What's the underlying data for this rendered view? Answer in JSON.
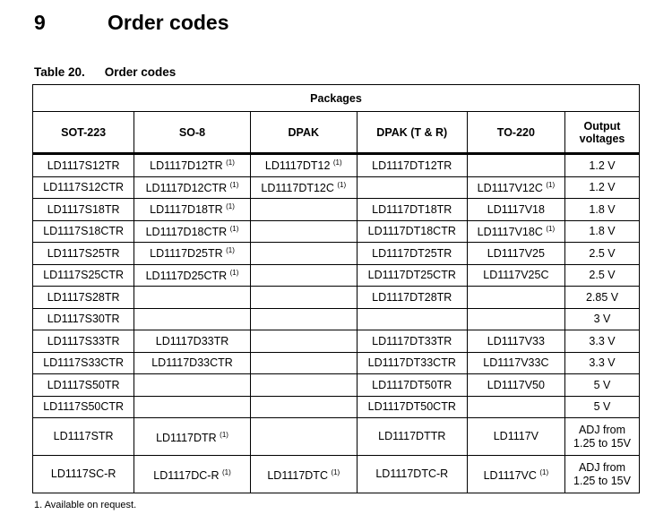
{
  "section": {
    "number": "9",
    "title": "Order codes"
  },
  "caption": {
    "label": "Table 20.",
    "title": "Order codes"
  },
  "table": {
    "group_header": "Packages",
    "columns": [
      "SOT-223",
      "SO-8",
      "DPAK",
      "DPAK (T & R)",
      "TO-220",
      "Output voltages"
    ],
    "rows": [
      [
        "LD1117S12TR",
        "LD1117D12TR (1)",
        "LD1117DT12 (1)",
        "LD1117DT12TR",
        "",
        "1.2 V"
      ],
      [
        "LD1117S12CTR",
        "LD1117D12CTR (1)",
        "LD1117DT12C (1)",
        "",
        "LD1117V12C (1)",
        "1.2 V"
      ],
      [
        "LD1117S18TR",
        "LD1117D18TR (1)",
        "",
        "LD1117DT18TR",
        "LD1117V18",
        "1.8 V"
      ],
      [
        "LD1117S18CTR",
        "LD1117D18CTR (1)",
        "",
        "LD1117DT18CTR",
        "LD1117V18C (1)",
        "1.8 V"
      ],
      [
        "LD1117S25TR",
        "LD1117D25TR (1)",
        "",
        "LD1117DT25TR",
        "LD1117V25",
        "2.5 V"
      ],
      [
        "LD1117S25CTR",
        "LD1117D25CTR (1)",
        "",
        "LD1117DT25CTR",
        "LD1117V25C",
        "2.5 V"
      ],
      [
        "LD1117S28TR",
        "",
        "",
        "LD1117DT28TR",
        "",
        "2.85 V"
      ],
      [
        "LD1117S30TR",
        "",
        "",
        "",
        "",
        "3 V"
      ],
      [
        "LD1117S33TR",
        "LD1117D33TR",
        "",
        "LD1117DT33TR",
        "LD1117V33",
        "3.3 V"
      ],
      [
        "LD1117S33CTR",
        "LD1117D33CTR",
        "",
        "LD1117DT33CTR",
        "LD1117V33C",
        "3.3 V"
      ],
      [
        "LD1117S50TR",
        "",
        "",
        "LD1117DT50TR",
        "LD1117V50",
        "5 V"
      ],
      [
        "LD1117S50CTR",
        "",
        "",
        "LD1117DT50CTR",
        "",
        "5 V"
      ],
      [
        "LD1117STR",
        "LD1117DTR (1)",
        "",
        "LD1117DTTR",
        "LD1117V",
        "ADJ from 1.25 to 15V"
      ],
      [
        "LD1117SC-R",
        "LD1117DC-R (1)",
        "LD1117DTC (1)",
        "LD1117DTC-R",
        "LD1117VC (1)",
        "ADJ from 1.25 to 15V"
      ]
    ]
  },
  "footnote": "1.   Available on request."
}
